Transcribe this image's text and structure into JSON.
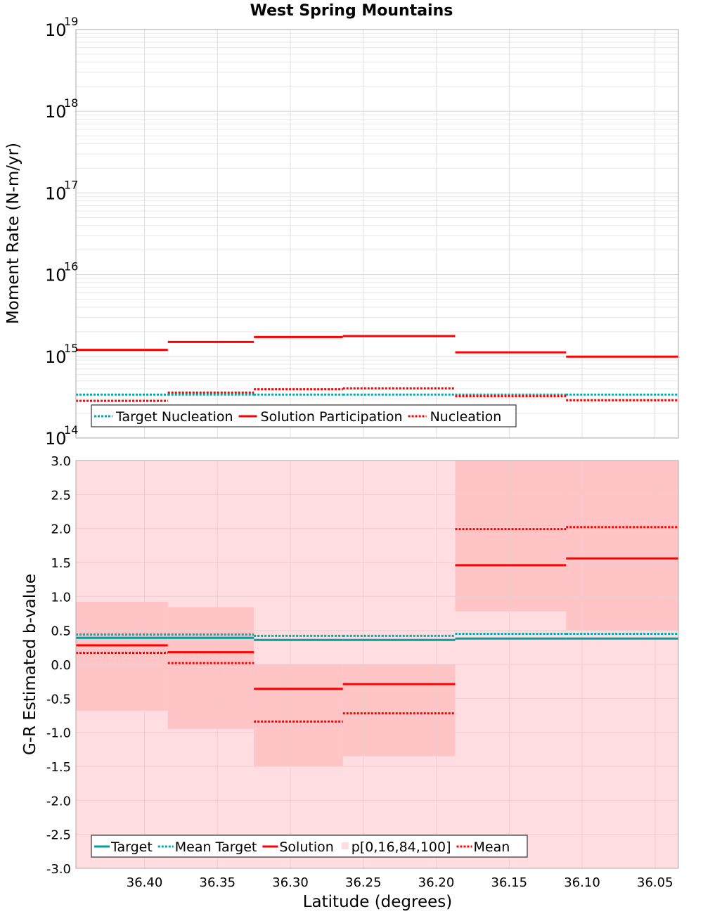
{
  "chart_data": {
    "title": "West Spring Mountains",
    "xlabel": "Latitude (degrees)",
    "xlim": [
      36.447,
      36.034
    ],
    "x_ticks": [
      "36.40",
      "36.35",
      "36.30",
      "36.25",
      "36.20",
      "36.15",
      "36.10",
      "36.05"
    ],
    "x_tick_values": [
      36.4,
      36.35,
      36.3,
      36.25,
      36.2,
      36.15,
      36.1,
      36.05
    ],
    "bins": [
      [
        36.447,
        36.384
      ],
      [
        36.384,
        36.325
      ],
      [
        36.325,
        36.264
      ],
      [
        36.264,
        36.187
      ],
      [
        36.187,
        36.111
      ],
      [
        36.111,
        36.034
      ]
    ],
    "panels": [
      {
        "type": "line",
        "ylabel": "Moment Rate (N-m/yr)",
        "yscale": "log",
        "ylim_exp": [
          14,
          19
        ],
        "y_tick_exponents": [
          "14",
          "15",
          "16",
          "17",
          "18",
          "19"
        ],
        "grid": true,
        "legend_placement": "lower-left",
        "series": [
          {
            "name": "Target Nucleation",
            "color": "#00aaaa",
            "style": "dotted",
            "values": [
              340000000000000.0,
              340000000000000.0,
              340000000000000.0,
              340000000000000.0,
              340000000000000.0,
              340000000000000.0
            ]
          },
          {
            "name": "Solution Participation",
            "color": "#ff0000",
            "style": "solid",
            "values": [
              1200000000000000.0,
              1500000000000000.0,
              1720000000000000.0,
              1770000000000000.0,
              1120000000000000.0,
              990000000000000.0
            ]
          },
          {
            "name": "Nucleation",
            "color": "#ff0000",
            "style": "dotted",
            "values": [
              285000000000000.0,
              360000000000000.0,
              395000000000000.0,
              405000000000000.0,
              325000000000000.0,
              290000000000000.0
            ]
          }
        ]
      },
      {
        "type": "line",
        "ylabel": "G-R Estimated b-value",
        "yscale": "linear",
        "ylim": [
          -3.0,
          3.0
        ],
        "y_ticks": [
          "-3.0",
          "-2.5",
          "-2.0",
          "-1.5",
          "-1.0",
          "-0.5",
          "0.0",
          "0.5",
          "1.0",
          "1.5",
          "2.0",
          "2.5",
          "3.0"
        ],
        "y_tick_values": [
          -3.0,
          -2.5,
          -2.0,
          -1.5,
          -1.0,
          -0.5,
          0.0,
          0.5,
          1.0,
          1.5,
          2.0,
          2.5,
          3.0
        ],
        "grid": true,
        "legend_placement": "lower-left",
        "band_outer": {
          "name": "p[0,16,84,100]",
          "color": "#ffdde0",
          "low": -3.0,
          "high": 3.0
        },
        "band_inner": {
          "color": "#ffc4c6",
          "low": [
            -0.68,
            -0.95,
            -1.5,
            -1.35,
            0.78,
            0.5
          ],
          "high": [
            0.92,
            0.84,
            0.0,
            0.0,
            3.0,
            3.0
          ]
        },
        "series": [
          {
            "name": "Target",
            "color": "#00a0a0",
            "style": "solid",
            "values": [
              0.39,
              0.39,
              0.36,
              0.36,
              0.38,
              0.38
            ]
          },
          {
            "name": "Mean Target",
            "color": "#00aaaa",
            "style": "dotted",
            "values": [
              0.44,
              0.44,
              0.42,
              0.42,
              0.45,
              0.45
            ]
          },
          {
            "name": "Solution",
            "color": "#ff0000",
            "style": "solid",
            "values": [
              0.28,
              0.18,
              -0.36,
              -0.29,
              1.46,
              1.56
            ]
          },
          {
            "name": "Mean",
            "color": "#ff0000",
            "style": "dotted",
            "values": [
              0.17,
              0.02,
              -0.84,
              -0.72,
              1.99,
              2.02
            ]
          }
        ],
        "legend_order": [
          "Target",
          "Mean Target",
          "Solution",
          "p[0,16,84,100]",
          "Mean"
        ]
      }
    ]
  }
}
